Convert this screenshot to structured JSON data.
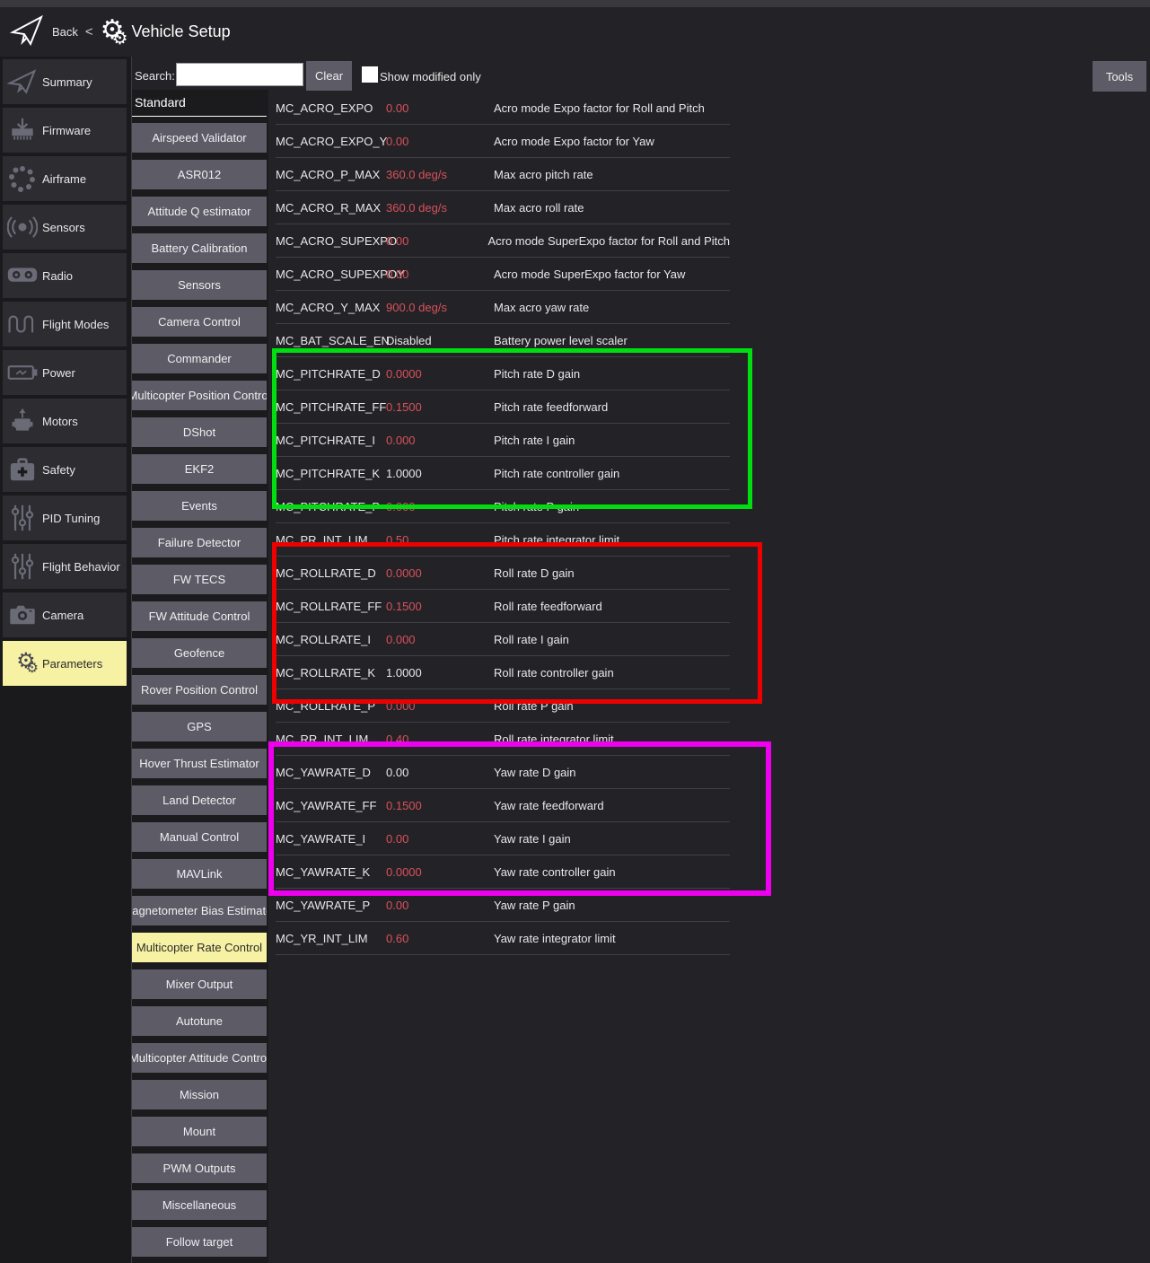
{
  "header": {
    "back_label": "Back",
    "separator": "<",
    "title": "Vehicle Setup"
  },
  "toolbar": {
    "search_label": "Search:",
    "search_value": "",
    "clear_label": "Clear",
    "show_modified_label": "Show modified only",
    "show_modified_checked": false,
    "tools_label": "Tools"
  },
  "sidebar": {
    "items": [
      {
        "label": "Summary",
        "icon": "paper-plane-icon",
        "selected": false
      },
      {
        "label": "Firmware",
        "icon": "firmware-download-icon",
        "selected": false
      },
      {
        "label": "Airframe",
        "icon": "airframe-dots-icon",
        "selected": false
      },
      {
        "label": "Sensors",
        "icon": "sensors-signal-icon",
        "selected": false
      },
      {
        "label": "Radio",
        "icon": "radio-goggles-icon",
        "selected": false
      },
      {
        "label": "Flight Modes",
        "icon": "flight-modes-wave-icon",
        "selected": false
      },
      {
        "label": "Power",
        "icon": "battery-icon",
        "selected": false
      },
      {
        "label": "Motors",
        "icon": "motor-icon",
        "selected": false
      },
      {
        "label": "Safety",
        "icon": "first-aid-icon",
        "selected": false
      },
      {
        "label": "PID Tuning",
        "icon": "sliders-icon",
        "selected": false
      },
      {
        "label": "Flight Behavior",
        "icon": "sliders-icon",
        "selected": false
      },
      {
        "label": "Camera",
        "icon": "camera-icon",
        "selected": false
      },
      {
        "label": "Parameters",
        "icon": "gears-icon",
        "selected": true
      }
    ]
  },
  "groups": {
    "header": "Standard",
    "items": [
      {
        "label": "Airspeed Validator",
        "selected": false
      },
      {
        "label": "ASR012",
        "selected": false
      },
      {
        "label": "Attitude Q estimator",
        "selected": false
      },
      {
        "label": "Battery Calibration",
        "selected": false
      },
      {
        "label": "Sensors",
        "selected": false
      },
      {
        "label": "Camera Control",
        "selected": false
      },
      {
        "label": "Commander",
        "selected": false
      },
      {
        "label": "Multicopter Position Control",
        "selected": false
      },
      {
        "label": "DShot",
        "selected": false
      },
      {
        "label": "EKF2",
        "selected": false
      },
      {
        "label": "Events",
        "selected": false
      },
      {
        "label": "Failure Detector",
        "selected": false
      },
      {
        "label": "FW TECS",
        "selected": false
      },
      {
        "label": "FW Attitude Control",
        "selected": false
      },
      {
        "label": "Geofence",
        "selected": false
      },
      {
        "label": "Rover Position Control",
        "selected": false
      },
      {
        "label": "GPS",
        "selected": false
      },
      {
        "label": "Hover Thrust Estimator",
        "selected": false
      },
      {
        "label": "Land Detector",
        "selected": false
      },
      {
        "label": "Manual Control",
        "selected": false
      },
      {
        "label": "MAVLink",
        "selected": false
      },
      {
        "label": "Magnetometer Bias Estimator",
        "selected": false
      },
      {
        "label": "Multicopter Rate Control",
        "selected": true
      },
      {
        "label": "Mixer Output",
        "selected": false
      },
      {
        "label": "Autotune",
        "selected": false
      },
      {
        "label": "Multicopter Attitude Control",
        "selected": false
      },
      {
        "label": "Mission",
        "selected": false
      },
      {
        "label": "Mount",
        "selected": false
      },
      {
        "label": "PWM Outputs",
        "selected": false
      },
      {
        "label": "Miscellaneous",
        "selected": false
      },
      {
        "label": "Follow target",
        "selected": false
      }
    ]
  },
  "parameters": [
    {
      "name": "MC_ACRO_EXPO",
      "value": "0.00",
      "modified": true,
      "desc": "Acro mode Expo factor for Roll and Pitch"
    },
    {
      "name": "MC_ACRO_EXPO_Y",
      "value": "0.00",
      "modified": true,
      "desc": "Acro mode Expo factor for Yaw"
    },
    {
      "name": "MC_ACRO_P_MAX",
      "value": "360.0 deg/s",
      "modified": true,
      "desc": "Max acro pitch rate"
    },
    {
      "name": "MC_ACRO_R_MAX",
      "value": "360.0 deg/s",
      "modified": true,
      "desc": "Max acro roll rate"
    },
    {
      "name": "MC_ACRO_SUPEXPO",
      "value": "0.00",
      "modified": true,
      "desc": "Acro mode SuperExpo factor for Roll and Pitch"
    },
    {
      "name": "MC_ACRO_SUPEXPOY",
      "value": "0.00",
      "modified": true,
      "desc": "Acro mode SuperExpo factor for Yaw"
    },
    {
      "name": "MC_ACRO_Y_MAX",
      "value": "900.0 deg/s",
      "modified": true,
      "desc": "Max acro yaw rate"
    },
    {
      "name": "MC_BAT_SCALE_EN",
      "value": "Disabled",
      "modified": false,
      "desc": "Battery power level scaler"
    },
    {
      "name": "MC_PITCHRATE_D",
      "value": "0.0000",
      "modified": true,
      "desc": "Pitch rate D gain"
    },
    {
      "name": "MC_PITCHRATE_FF",
      "value": "0.1500",
      "modified": true,
      "desc": "Pitch rate feedforward"
    },
    {
      "name": "MC_PITCHRATE_I",
      "value": "0.000",
      "modified": true,
      "desc": "Pitch rate I gain"
    },
    {
      "name": "MC_PITCHRATE_K",
      "value": "1.0000",
      "modified": false,
      "desc": "Pitch rate controller gain"
    },
    {
      "name": "MC_PITCHRATE_P",
      "value": "0.000",
      "modified": true,
      "desc": "Pitch rate P gain"
    },
    {
      "name": "MC_PR_INT_LIM",
      "value": "0.50",
      "modified": true,
      "desc": "Pitch rate integrator limit"
    },
    {
      "name": "MC_ROLLRATE_D",
      "value": "0.0000",
      "modified": true,
      "desc": "Roll rate D gain"
    },
    {
      "name": "MC_ROLLRATE_FF",
      "value": "0.1500",
      "modified": true,
      "desc": "Roll rate feedforward"
    },
    {
      "name": "MC_ROLLRATE_I",
      "value": "0.000",
      "modified": true,
      "desc": "Roll rate I gain"
    },
    {
      "name": "MC_ROLLRATE_K",
      "value": "1.0000",
      "modified": false,
      "desc": "Roll rate controller gain"
    },
    {
      "name": "MC_ROLLRATE_P",
      "value": "0.000",
      "modified": true,
      "desc": "Roll rate P gain"
    },
    {
      "name": "MC_RR_INT_LIM",
      "value": "0.40",
      "modified": true,
      "desc": "Roll rate integrator limit"
    },
    {
      "name": "MC_YAWRATE_D",
      "value": "0.00",
      "modified": false,
      "desc": "Yaw rate D gain"
    },
    {
      "name": "MC_YAWRATE_FF",
      "value": "0.1500",
      "modified": true,
      "desc": "Yaw rate feedforward"
    },
    {
      "name": "MC_YAWRATE_I",
      "value": "0.00",
      "modified": true,
      "desc": "Yaw rate I gain"
    },
    {
      "name": "MC_YAWRATE_K",
      "value": "0.0000",
      "modified": true,
      "desc": "Yaw rate controller gain"
    },
    {
      "name": "MC_YAWRATE_P",
      "value": "0.00",
      "modified": true,
      "desc": "Yaw rate P gain"
    },
    {
      "name": "MC_YR_INT_LIM",
      "value": "0.60",
      "modified": true,
      "desc": "Yaw rate integrator limit"
    }
  ],
  "annotations": [
    {
      "name": "pitch-rate-highlight",
      "color": "#00dd11"
    },
    {
      "name": "roll-rate-highlight",
      "color": "#ee0000"
    },
    {
      "name": "yaw-rate-highlight",
      "color": "#ee00ee"
    }
  ],
  "colors": {
    "modified_value": "#d9505a",
    "selected_highlight": "#f7f1a3",
    "annotation_green": "#00dd11",
    "annotation_red": "#ee0000",
    "annotation_magenta": "#ee00ee"
  }
}
